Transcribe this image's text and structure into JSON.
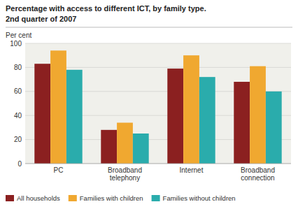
{
  "chart_data": {
    "type": "bar",
    "title": "Percentage with access to different ICT, by family type.",
    "subtitle": "2nd quarter of 2007",
    "ylabel": "Per cent",
    "categories": [
      "PC",
      "Broadband\ntelephony",
      "Internet",
      "Broadband\nconnection"
    ],
    "series": [
      {
        "name": "All households",
        "color": "#8B2020",
        "values": [
          83,
          28,
          79,
          68
        ]
      },
      {
        "name": "Families with children",
        "color": "#F0A830",
        "values": [
          94,
          34,
          90,
          81
        ]
      },
      {
        "name": "Families without children",
        "color": "#2AACAC",
        "values": [
          78,
          25,
          72,
          60
        ]
      }
    ],
    "ylim": [
      0,
      100
    ],
    "yticks": [
      0,
      20,
      40,
      60,
      80,
      100
    ],
    "grid": true,
    "legend": "bottom"
  }
}
